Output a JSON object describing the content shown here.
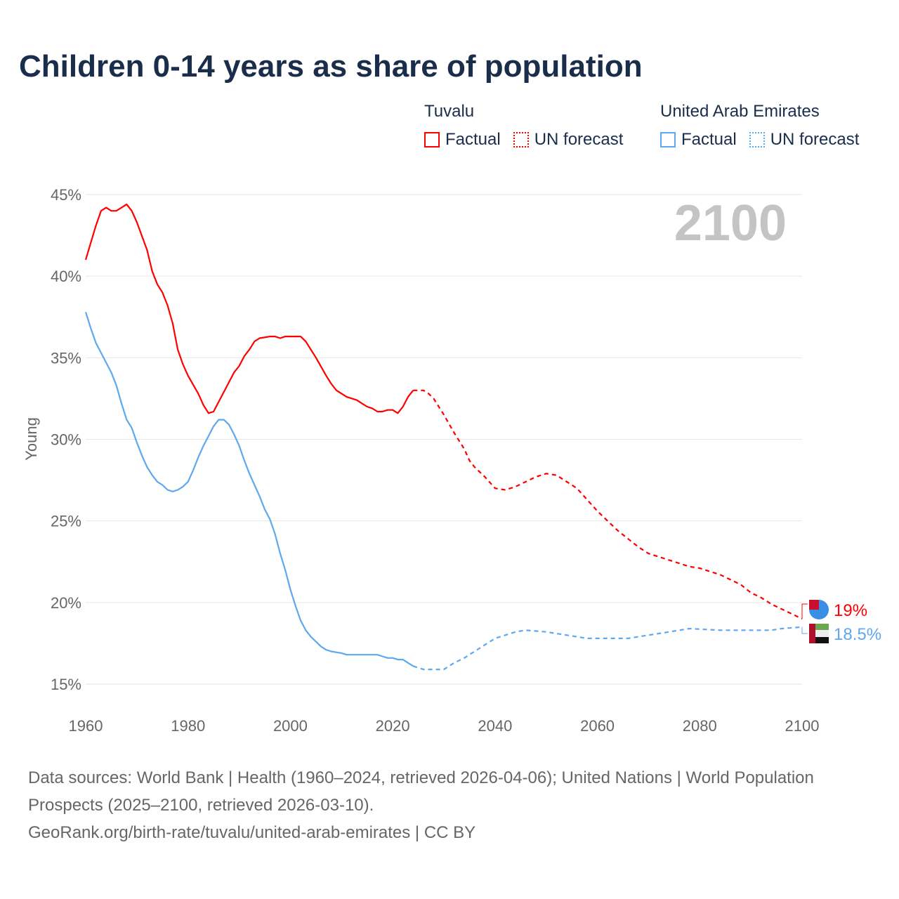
{
  "title": "Children 0-14 years as share of population",
  "legend": {
    "groups": [
      {
        "name": "Tuvalu",
        "factual": "Factual",
        "forecast": "UN forecast",
        "color": "#ff0000"
      },
      {
        "name": "United Arab Emirates",
        "factual": "Factual",
        "forecast": "UN forecast",
        "color": "#5ea8ee"
      }
    ]
  },
  "chart_data": {
    "type": "line",
    "title": "Children 0-14 years as share of population",
    "xlabel": "",
    "ylabel": "Young",
    "xlim": [
      1960,
      2100
    ],
    "ylim": [
      15,
      45
    ],
    "x_ticks": [
      "1960",
      "1980",
      "2000",
      "2020",
      "2040",
      "2060",
      "2080",
      "2100"
    ],
    "y_ticks": [
      "15%",
      "20%",
      "25%",
      "30%",
      "35%",
      "40%",
      "45%"
    ],
    "grid": true,
    "year_label": "2100",
    "factual_end_year": 2024,
    "series": [
      {
        "name": "Tuvalu",
        "color": "#ff0000",
        "end_label": "19%",
        "points": [
          [
            1960,
            41.0
          ],
          [
            1962,
            43.1
          ],
          [
            1963,
            44.0
          ],
          [
            1964,
            44.2
          ],
          [
            1965,
            44.0
          ],
          [
            1966,
            44.0
          ],
          [
            1968,
            44.4
          ],
          [
            1969,
            44.0
          ],
          [
            1970,
            43.3
          ],
          [
            1972,
            41.6
          ],
          [
            1973,
            40.3
          ],
          [
            1974,
            39.5
          ],
          [
            1975,
            39.0
          ],
          [
            1976,
            38.2
          ],
          [
            1977,
            37.1
          ],
          [
            1978,
            35.5
          ],
          [
            1979,
            34.6
          ],
          [
            1980,
            33.9
          ],
          [
            1982,
            32.8
          ],
          [
            1983,
            32.1
          ],
          [
            1984,
            31.6
          ],
          [
            1985,
            31.7
          ],
          [
            1987,
            32.9
          ],
          [
            1989,
            34.1
          ],
          [
            1990,
            34.5
          ],
          [
            1991,
            35.1
          ],
          [
            1992,
            35.5
          ],
          [
            1993,
            36.0
          ],
          [
            1994,
            36.2
          ],
          [
            1996,
            36.3
          ],
          [
            1997,
            36.3
          ],
          [
            1998,
            36.2
          ],
          [
            1999,
            36.3
          ],
          [
            2002,
            36.3
          ],
          [
            2003,
            36.0
          ],
          [
            2005,
            35.0
          ],
          [
            2007,
            33.9
          ],
          [
            2008,
            33.4
          ],
          [
            2009,
            33.0
          ],
          [
            2010,
            32.8
          ],
          [
            2011,
            32.6
          ],
          [
            2013,
            32.4
          ],
          [
            2014,
            32.2
          ],
          [
            2015,
            32.0
          ],
          [
            2016,
            31.9
          ],
          [
            2017,
            31.7
          ],
          [
            2018,
            31.7
          ],
          [
            2019,
            31.8
          ],
          [
            2020,
            31.8
          ],
          [
            2021,
            31.6
          ],
          [
            2022,
            32.0
          ],
          [
            2023,
            32.6
          ],
          [
            2024,
            33.0
          ],
          [
            2026,
            33.0
          ],
          [
            2027,
            32.8
          ],
          [
            2028,
            32.5
          ],
          [
            2030,
            31.5
          ],
          [
            2032,
            30.4
          ],
          [
            2034,
            29.4
          ],
          [
            2035,
            28.7
          ],
          [
            2036,
            28.3
          ],
          [
            2038,
            27.7
          ],
          [
            2040,
            27.0
          ],
          [
            2042,
            26.9
          ],
          [
            2044,
            27.1
          ],
          [
            2046,
            27.4
          ],
          [
            2048,
            27.7
          ],
          [
            2050,
            27.9
          ],
          [
            2052,
            27.8
          ],
          [
            2054,
            27.4
          ],
          [
            2056,
            27.0
          ],
          [
            2058,
            26.3
          ],
          [
            2060,
            25.6
          ],
          [
            2062,
            25.0
          ],
          [
            2064,
            24.4
          ],
          [
            2066,
            23.9
          ],
          [
            2068,
            23.4
          ],
          [
            2070,
            23.0
          ],
          [
            2072,
            22.8
          ],
          [
            2074,
            22.6
          ],
          [
            2076,
            22.4
          ],
          [
            2078,
            22.2
          ],
          [
            2080,
            22.1
          ],
          [
            2082,
            21.9
          ],
          [
            2084,
            21.7
          ],
          [
            2086,
            21.4
          ],
          [
            2088,
            21.1
          ],
          [
            2090,
            20.6
          ],
          [
            2092,
            20.3
          ],
          [
            2094,
            19.9
          ],
          [
            2096,
            19.6
          ],
          [
            2098,
            19.3
          ],
          [
            2100,
            19.0
          ]
        ]
      },
      {
        "name": "United Arab Emirates",
        "color": "#5ea8ee",
        "end_label": "18.5%",
        "points": [
          [
            1960,
            37.8
          ],
          [
            1961,
            36.8
          ],
          [
            1962,
            35.9
          ],
          [
            1963,
            35.3
          ],
          [
            1964,
            34.7
          ],
          [
            1965,
            34.1
          ],
          [
            1966,
            33.3
          ],
          [
            1967,
            32.2
          ],
          [
            1968,
            31.2
          ],
          [
            1969,
            30.7
          ],
          [
            1970,
            29.8
          ],
          [
            1971,
            29.0
          ],
          [
            1972,
            28.3
          ],
          [
            1973,
            27.8
          ],
          [
            1974,
            27.4
          ],
          [
            1975,
            27.2
          ],
          [
            1976,
            26.9
          ],
          [
            1977,
            26.8
          ],
          [
            1978,
            26.9
          ],
          [
            1979,
            27.1
          ],
          [
            1980,
            27.4
          ],
          [
            1981,
            28.1
          ],
          [
            1982,
            28.9
          ],
          [
            1983,
            29.6
          ],
          [
            1984,
            30.2
          ],
          [
            1985,
            30.8
          ],
          [
            1986,
            31.2
          ],
          [
            1987,
            31.2
          ],
          [
            1988,
            30.9
          ],
          [
            1989,
            30.3
          ],
          [
            1990,
            29.6
          ],
          [
            1991,
            28.7
          ],
          [
            1992,
            27.9
          ],
          [
            1993,
            27.2
          ],
          [
            1994,
            26.5
          ],
          [
            1995,
            25.7
          ],
          [
            1996,
            25.1
          ],
          [
            1997,
            24.2
          ],
          [
            1998,
            23.0
          ],
          [
            1999,
            22.0
          ],
          [
            2000,
            20.8
          ],
          [
            2001,
            19.8
          ],
          [
            2002,
            18.9
          ],
          [
            2003,
            18.3
          ],
          [
            2004,
            17.9
          ],
          [
            2005,
            17.6
          ],
          [
            2006,
            17.3
          ],
          [
            2007,
            17.1
          ],
          [
            2008,
            17.0
          ],
          [
            2010,
            16.9
          ],
          [
            2011,
            16.8
          ],
          [
            2017,
            16.8
          ],
          [
            2018,
            16.7
          ],
          [
            2019,
            16.6
          ],
          [
            2020,
            16.6
          ],
          [
            2021,
            16.5
          ],
          [
            2022,
            16.5
          ],
          [
            2023,
            16.3
          ],
          [
            2024,
            16.1
          ],
          [
            2026,
            15.9
          ],
          [
            2030,
            15.9
          ],
          [
            2032,
            16.3
          ],
          [
            2034,
            16.6
          ],
          [
            2036,
            17.0
          ],
          [
            2038,
            17.4
          ],
          [
            2040,
            17.8
          ],
          [
            2042,
            18.0
          ],
          [
            2044,
            18.2
          ],
          [
            2046,
            18.3
          ],
          [
            2050,
            18.2
          ],
          [
            2052,
            18.1
          ],
          [
            2054,
            18.0
          ],
          [
            2058,
            17.8
          ],
          [
            2066,
            17.8
          ],
          [
            2070,
            18.0
          ],
          [
            2074,
            18.2
          ],
          [
            2078,
            18.4
          ],
          [
            2084,
            18.3
          ],
          [
            2090,
            18.3
          ],
          [
            2094,
            18.3
          ],
          [
            2096,
            18.4
          ],
          [
            2100,
            18.5
          ]
        ]
      }
    ]
  },
  "source": {
    "line1": "Data sources: World Bank | Health (1960–2024, retrieved 2026-04-06); United Nations | World Population Prospects (2025–2100, retrieved 2026-03-10).",
    "line2": "GeoRank.org/birth-rate/tuvalu/united-arab-emirates | CC BY"
  }
}
